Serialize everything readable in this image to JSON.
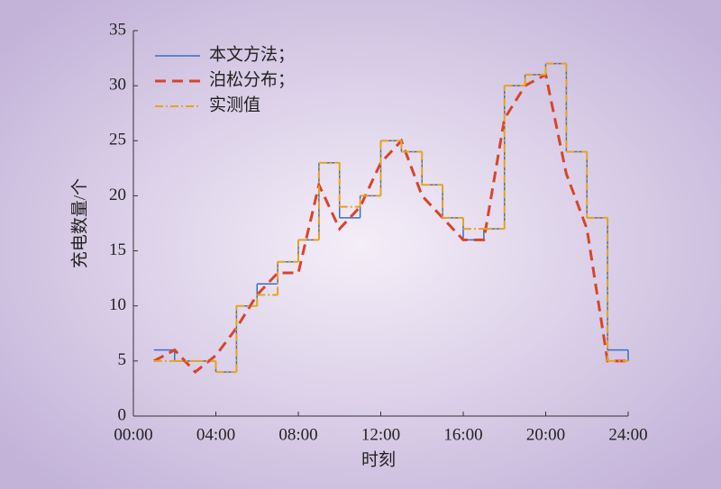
{
  "chart_data": {
    "type": "line",
    "x_label": "时刻",
    "y_label": "充电数量/个",
    "x": [
      1,
      2,
      3,
      4,
      5,
      6,
      7,
      8,
      9,
      10,
      11,
      12,
      13,
      14,
      15,
      16,
      17,
      18,
      19,
      20,
      21,
      22,
      23,
      24
    ],
    "series": [
      {
        "name": "本文方法；",
        "color": "#3a6fc4",
        "drawstyle": "steps-post",
        "linestyle": "solid",
        "values": [
          6,
          5,
          5,
          4,
          10,
          12,
          14,
          16,
          23,
          18,
          20,
          25,
          24,
          21,
          18,
          16,
          17,
          30,
          31,
          32,
          24,
          18,
          6,
          5
        ]
      },
      {
        "name": "泊松分布；",
        "color": "#d9442a",
        "drawstyle": "default",
        "linestyle": "dashed",
        "values": [
          5,
          6,
          4,
          5.5,
          8,
          11,
          13,
          13,
          21,
          17,
          19,
          23,
          25,
          20,
          18,
          16,
          16,
          27,
          30,
          31,
          22,
          17,
          5,
          5
        ]
      },
      {
        "name": "实测值",
        "color": "#e8a21f",
        "drawstyle": "steps-post",
        "linestyle": "dashdot",
        "values": [
          5,
          5,
          5,
          4,
          10,
          11,
          14,
          16,
          23,
          19,
          20,
          25,
          24,
          21,
          18,
          17,
          17,
          30,
          31,
          32,
          24,
          18,
          5,
          5
        ]
      }
    ],
    "xlim": [
      0,
      24
    ],
    "xticks": [
      {
        "value": 0,
        "label": "00:00"
      },
      {
        "value": 4,
        "label": "04:00"
      },
      {
        "value": 8,
        "label": "08:00"
      },
      {
        "value": 12,
        "label": "12:00"
      },
      {
        "value": 16,
        "label": "16:00"
      },
      {
        "value": 20,
        "label": "20:00"
      },
      {
        "value": 24,
        "label": "24:00"
      }
    ],
    "ylim": [
      0,
      35
    ],
    "yticks": [
      0,
      5,
      10,
      15,
      20,
      25,
      30,
      35
    ],
    "grid": false,
    "legend": "upper left"
  }
}
